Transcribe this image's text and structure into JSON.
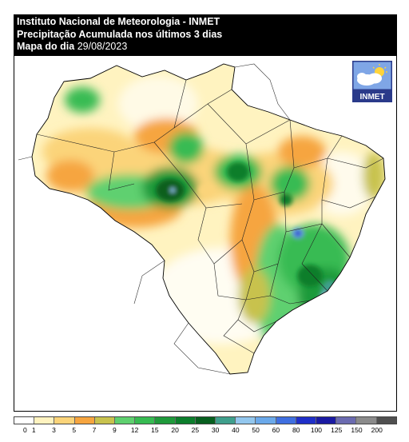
{
  "header": {
    "line1": "Instituto Nacional de Meteorologia - INMET",
    "line2": "Precipitação Acumulada nos últimos 3 dias",
    "line3_label": "Mapa do dia",
    "line3_date": "29/08/2023"
  },
  "logo": {
    "text": "INMET",
    "icon": "cloud-sun-icon"
  },
  "legend": {
    "ticks": [
      "0",
      "1",
      "3",
      "5",
      "7",
      "9",
      "12",
      "15",
      "20",
      "25",
      "30",
      "40",
      "50",
      "60",
      "80",
      "100",
      "125",
      "150",
      "200"
    ],
    "colors": [
      "#ffffff",
      "#fff3c0",
      "#fbd47a",
      "#f6a53f",
      "#c8c24e",
      "#5fd06f",
      "#37bb52",
      "#1f9a3b",
      "#0c7e2c",
      "#075f1f",
      "#3f9f8c",
      "#93c7ee",
      "#6ba9ea",
      "#3f6fe0",
      "#1f2fc8",
      "#1a1aa2",
      "#6b6bb0",
      "#8b8b8b",
      "#4f4f4f"
    ]
  }
}
